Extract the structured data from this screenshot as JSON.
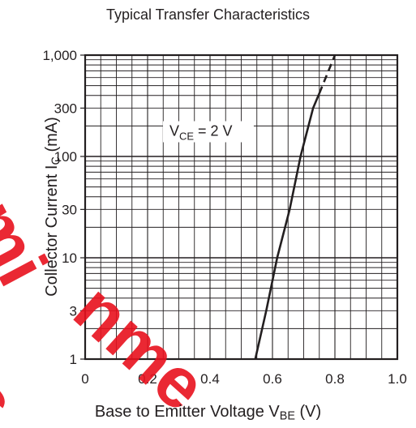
{
  "chart_data": {
    "type": "line",
    "title": "Typical Transfer Characteristics",
    "xlabel": {
      "main": "Base to Emitter Voltage  V",
      "sub": "BE",
      "unit": "  (V)"
    },
    "ylabel": {
      "main": "Collector Current  I",
      "sub": "C",
      "unit": "  (mA)"
    },
    "xlim": [
      0,
      1.0
    ],
    "ylim": [
      1,
      1000
    ],
    "yscale": "log",
    "grid": true,
    "x_ticks": [
      0,
      0.2,
      0.4,
      0.6,
      0.8,
      1.0
    ],
    "x_tick_labels": [
      "0",
      "0.2",
      "0.4",
      "0.6",
      "0.8",
      "1.0"
    ],
    "y_ticks": [
      1,
      3,
      10,
      30,
      100,
      300,
      1000
    ],
    "y_tick_labels": [
      "1",
      "3",
      "10",
      "30",
      "100",
      "300",
      "1,000"
    ],
    "series": [
      {
        "solid": [
          [
            0.545,
            1
          ],
          [
            0.58,
            3
          ],
          [
            0.615,
            10
          ],
          [
            0.655,
            30
          ],
          [
            0.69,
            100
          ],
          [
            0.73,
            300
          ],
          [
            0.75,
            420
          ]
        ],
        "dashed": [
          [
            0.75,
            420
          ],
          [
            0.8,
            1000
          ]
        ],
        "color": "#231f20"
      }
    ],
    "annotations": [
      {
        "main": "V",
        "sub": "CE",
        "rest": " = 2 V",
        "x": 0.27,
        "y": 160
      }
    ]
  },
  "watermark": {
    "lines": [
      "Semi",
      "nme",
      "es"
    ],
    "color": "#e8111e"
  }
}
